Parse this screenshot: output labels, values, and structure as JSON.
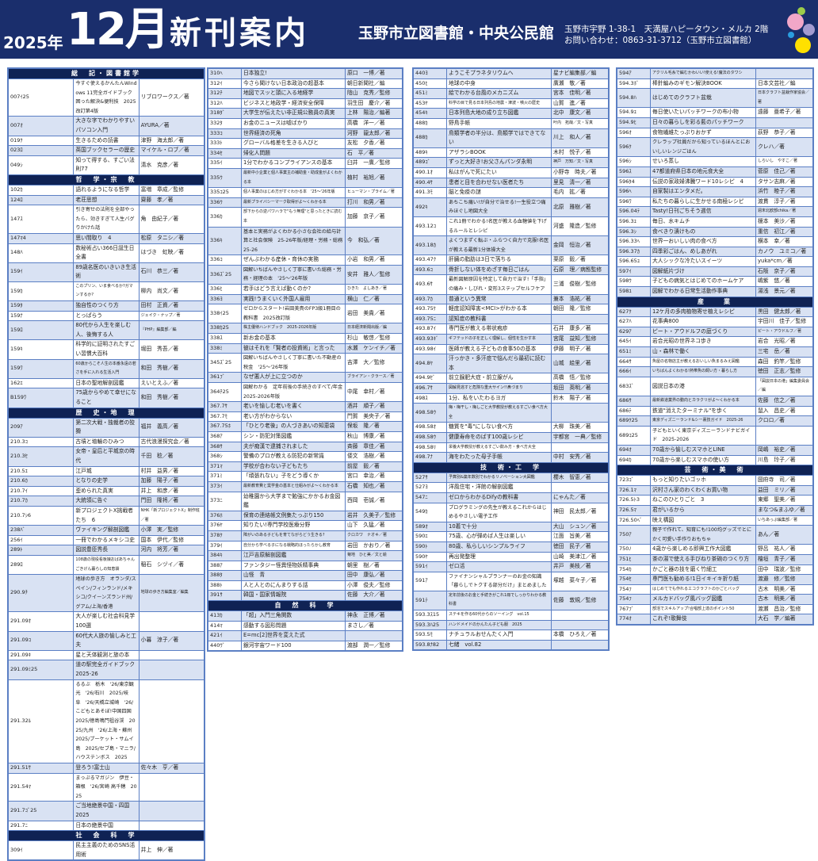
{
  "header": {
    "year": "2025年",
    "month": "12月",
    "title": "新刊案内",
    "library": "玉野市立図書館・中央公民館",
    "address": "玉野市宇野 1-38-1　天満屋ハピータウン・メルカ 2階",
    "contact": "お問い合わせ：0863-31-3712（玉野市立図書館）"
  },
  "colors": {
    "header_bg": "#1a2e6c",
    "section_bg": "#0f2254",
    "row_alt": "#d9e2f3",
    "border": "#5b7fc4",
    "dots": [
      "#9ccc4a",
      "#f2a7c8",
      "#a29bd0",
      "#2a9de0",
      "#ffe000"
    ]
  },
  "columns": [
    [
      {
        "section": "総　記・図書館学"
      },
      [
        "007ｲ25",
        "今すぐ使えるかんたんWindows 11完全ガイドブック 困った解決&便利技　2025改訂第4版",
        "リブロワークス／著"
      ],
      [
        "007ｵ",
        "大きな字でわかりやすいパソコン入門",
        "AYURA／著"
      ],
      [
        "019ｸ",
        "生きるための読書",
        "津野　海太郎／著"
      ],
      [
        "023ﾛ",
        "英国ブックセラーの歴史",
        "マイケル・ロブ／著"
      ],
      [
        "049ｼ",
        "知って得する、すごい法則77",
        "清水　克彦／著"
      ],
      {
        "section": "哲　学・宗　教"
      },
      [
        "102ｶ",
        "語れるようになる哲学",
        "富増　章成／監修"
      ],
      [
        "124ﾛ",
        "老荘思想",
        "齋藤　孝／著"
      ],
      [
        "147ｽ",
        "引き寄せの法則を全部やったら、効きすぎて人生バグりかけた話",
        "角　由紀子／著"
      ],
      [
        "147ﾏ4",
        "思い間取り　4",
        "松原　タニシ／著"
      ],
      [
        "148ﾊ",
        "数秘術占い366日誕生日全書",
        "はづき　虹映／著"
      ],
      [
        "159ｲ",
        "89歳名医のいきいき生活術",
        "石川　恭三／著"
      ],
      [
        "159ｶ",
        "このプリン、いま食べるか?ガマンするか?",
        "柳内　尚文／著"
      ],
      [
        "159ﾀ",
        "独自性のつくり方",
        "田村　正資／著"
      ],
      [
        "159ﾅ",
        "とっぱらう",
        "ジェイク・ナップ／著"
      ],
      [
        "159ﾛ",
        "80代から人生を楽しむ人、後悔する人",
        "『PHP』編集部／編"
      ],
      [
        "159ｷ",
        "科学的に証明されたすごい習慣大百科",
        "堀田　秀吾／著"
      ],
      [
        "159ﾜ",
        "60歳からこそ人生の本番永遠の若さを手に入れる生活入門",
        "和田　秀樹／著"
      ],
      [
        "162ｴ",
        "日本の聖地解剖図鑑",
        "えいとえふ／著"
      ],
      [
        "B159ﾜ",
        "75歳からやめて幸せになること",
        "和田　秀樹／著"
      ],
      {
        "section": "歴　史・地　理"
      },
      [
        "209ｱ",
        "第二次大戦・独裁者の狡猾",
        "福井　義高／著"
      ],
      [
        "210.3ｺ",
        "古墳と埴輪のひみつ",
        "古代浪漫探究会／著"
      ],
      [
        "210.3ｾ",
        "女帝・皇后と平城京の時代",
        "千田　稔／著"
      ],
      [
        "210.5ｴ",
        "江戸城",
        "村井　益男／著"
      ],
      [
        "210.6ｶ",
        "となりの史学",
        "加藤　陽子／著"
      ],
      [
        "210.7ｲ",
        "歪められた真実",
        "井上　和彦／著"
      ],
      [
        "210.7ｶ",
        "大統領に告ぐ",
        "門田　隆将／著"
      ],
      [
        "210.7ｼ6",
        "新プロジェクトX挑戦者たち　6",
        "NHK「新プロジェクトX」制作班／著"
      ],
      [
        "238ﾊﾞ",
        "ヴァイキング解剖図鑑",
        "小澤　実／監修"
      ],
      [
        "256ｲ",
        "一冊でわかるメキシコ史",
        "国本　伊代／監修"
      ],
      [
        "289ﾄ",
        "図説豊臣秀長",
        "河内　将芳／著"
      ],
      [
        "289ﾛ",
        "108歳の現役看板娘おばあちゃんごきげん暮らしの知恵袋",
        "稲石　シヅイ／著"
      ],
      [
        "290.9ﾁ",
        "地球の歩き方　オランダ/スペイン/フィンランド/メキシコ/クイーンズランド州/グアム/上海/香港",
        "地球の歩き方編集室／編集"
      ],
      [
        "291.09ｵ",
        "大人が楽しむ社会科見学100選",
        ""
      ],
      [
        "291.09ｺ",
        "60代大人旅の愉しみと工夫",
        "小暮　涼子／著"
      ],
      [
        "291.09ｷ",
        "星と天体観測と旅の本",
        ""
      ],
      [
        "291.09ﾐ25",
        "道の駅完全ガイドブック　2025-26",
        ""
      ],
      [
        "291.32ﾙ",
        "るるぶ　栃木　'26/東京観光　'26/石川　2025/岐阜　'26/天橋立城崎　'26/こどもとあそぼ!中国四国　2025/徳島鳴門祖谷渓　2025/九州　'26/上海・蘇州　2025/プーケット・サムイ島　2025/セブ島・マニラ/ハウステンボス　2025",
        ""
      ],
      [
        "291.51ｻ",
        "登ろう!富士山",
        "佐々木　亨／著"
      ],
      [
        "291.54ﾏ",
        "まっぷるマガジン　伊豆・箱根　'26/宮崎 高千穂　2025",
        ""
      ],
      [
        "291.7ｺﾞ25",
        "ご当地絶景中国・四国　2025",
        ""
      ],
      [
        "291.7ﾆ",
        "日本の絶景中国",
        ""
      ],
      {
        "section": "社　会　科　学"
      },
      [
        "309ｲ",
        "民主主義のためのSNS活用術",
        "井上　伸／著"
      ]
    ],
    [
      [
        "310ﾍ",
        "日本独立!",
        "原口　一博／著"
      ],
      [
        "312ｲ",
        "今さら聞けない日本政治の超基本",
        "朝日新聞社／編"
      ],
      [
        "312ﾁ",
        "地図でスッと頭に入る地経学",
        "陰山　克秀／監修"
      ],
      [
        "312ﾊ",
        "ビジネスと地政学・経済安全保障",
        "羽生田　慶介／著"
      ],
      [
        "318ﾀﾞ",
        "大学生が伝えたい非正規公務員の真実",
        "上林　陽治／編著"
      ],
      [
        "332ﾀ",
        "お金のニュースは嘘ばかり",
        "高橋　洋一／著"
      ],
      [
        "333ｺ",
        "世界経済の死角",
        "河野　龍太郎／著"
      ],
      [
        "333ﾄ",
        "グローバル格差を生きる人びと",
        "友松　夕香／著"
      ],
      [
        "334ｾ",
        "帰化人問題",
        "石　平／著"
      ],
      [
        "335ｲ",
        "1分でわかるコンプライアンスの基本",
        "臼井　一廣／監修"
      ],
      [
        "335ｳ",
        "最新中小企業と個人事業主の補助金・助成金がよくわかる本",
        "植村　裕旭／著"
      ],
      [
        "335ｺ25",
        "個人事業のはじめ方がすぐわかる本　'25～'26年版",
        "ヒューマン・プライム／著"
      ],
      [
        "336ｳ",
        "最新プライバシーマーク取得がよ～くわかる本",
        "打川　和男／著"
      ],
      [
        "336ｶ",
        "部下からの逆パワハラで\"もう無理\"と思ったときに読む本",
        "加藤　京子／著"
      ],
      [
        "336ｷ",
        "基本と実務がよくわかる小さな会社の給与計算と社会保険　25-26年版/経理・労務・総務　25-26",
        "今　和弘／著"
      ],
      [
        "336ｺ",
        "ぜんぶわかる産休・育休の実務",
        "小岩　和男／著"
      ],
      [
        "336ｽﾞ25",
        "図解いちばんやさしく丁寧に書いた総務・労務・経理の本　'25～'26年版",
        "安井　雅人／監修"
      ],
      [
        "336ﾋ",
        "若手はどう言えば動くのか?",
        "ひきた　よしあき／著"
      ],
      [
        "336ﾖ",
        "実践!うまくいく外国人雇用",
        "横山　仁／著"
      ],
      [
        "338ｲ25",
        "ゼロからスタート!岩田美貴のFP3級1冊目の教科書　2025改訂版",
        "岩田　美貴／著"
      ],
      [
        "338ｶ25",
        "株主優待ハンドブック　2025-2026年版",
        "日本経済新聞出版／編"
      ],
      [
        "338ｽ",
        "新お金の基本",
        "杉山　敏啓／監修"
      ],
      [
        "338ﾐ",
        "彼はそれを「賢者の投資術」と言った",
        "水瀬　ケンイチ／著"
      ],
      [
        "345ｽﾞ25",
        "図解いちばんやさしく丁寧に書いた不動産の税金　'25～'26年版",
        "吉澤　大／監修"
      ],
      [
        "361ﾌﾞ",
        "なぜ悪人が上に立つのか",
        "ブライアン・クラース／著"
      ],
      [
        "364ﾁ25",
        "図解わかる　定年前後の手続きのすべて/年金　2025-2026年版",
        "中尾　幸村／著"
      ],
      [
        "367.7ｻ",
        "老いを愉しむ老いを書く",
        "酒井　順子／著"
      ],
      [
        "367.7ﾓ",
        "老い方がわからない",
        "門賀　美央子／著"
      ],
      [
        "367.75ﾎ",
        "「ひとり老後」の人づきあいの知恵袋",
        "保坂　隆／著"
      ],
      [
        "368ｱ",
        "シン・防犯対策図鑑",
        "秋山　博康／著"
      ],
      [
        "368ｻ",
        "夫が痴漢で逮捕されました",
        "斉藤　章佳／著"
      ],
      [
        "368ｼ",
        "警備のプロが教える防犯の新常識",
        "倭文　浩樹／著"
      ],
      [
        "371ﾏ",
        "学校が合わない子どもたち",
        "前屋　毅／著"
      ],
      [
        "371ﾐ",
        "「頑張れない」子をどう導くか",
        "宮口　幸治／著"
      ],
      [
        "373ｲ",
        "最新教育費と奨学金の基本と仕組みがよ～くわかる本",
        "石橋　知也／著"
      ],
      [
        "373ﾆ",
        "幼稚園から大学まで勉強にかかるお金図鑑",
        "西岡　壱誠／著"
      ],
      [
        "376ﾎ",
        "保育の連絡帳文例集たっぷり150",
        "岩井　久美子／監修"
      ],
      [
        "376ﾔ",
        "知りたい!専門学校医療分野",
        "山下　久猛／著"
      ],
      [
        "378ｸ",
        "障がいのある子どもを育てながらどう生きる?",
        "クロカワ　ナオキ／著"
      ],
      [
        "379ｲ",
        "自分から学べる子になる戦略的ほったらかし教育",
        "岩田　かおり／著"
      ],
      [
        "384ｷ",
        "江戸吉原解剖図鑑",
        "菊地　ひと美／文と絵"
      ],
      [
        "388ｱ",
        "ファンタジー怪異怪物妖精事典",
        "朝里　樹／著"
      ],
      [
        "388ﾀ",
        "山怪　青",
        "田中　康弘／著"
      ],
      [
        "388ﾄ",
        "人と人とのにんまりする話",
        "小澤　俊夫／監修"
      ],
      [
        "391ｻ",
        "韓国・国家情報院",
        "佐藤　大介／著"
      ],
      {
        "section": "自　然　科　学"
      },
      [
        "413ｶ",
        "「超」入門三角関数",
        "神永　正博／著"
      ],
      [
        "414ﾏ",
        "感動する図形問題",
        "まさし／著"
      ],
      [
        "421ｲ",
        "E=mc[2]世界を変えた式",
        ""
      ],
      [
        "440ｳﾞ",
        "銀河宇宙ワード100",
        "渡部　潤一／監修"
      ]
    ],
    [
      [
        "440ﾖ",
        "ようこそプラネタリウムへ",
        "星ナビ編集部／編"
      ],
      [
        "450ﾋ",
        "地球の中身",
        "廣瀬　敬／著"
      ],
      [
        "451ﾐ",
        "絵でわかる台風のメカニズム",
        "宮本　佳明／著"
      ],
      [
        "453ﾔ",
        "科学の目で見る日本列島の地震・津波・噴火の歴史",
        "山賀　進／著"
      ],
      [
        "454ｷ",
        "日本列島大地の成り立ち図鑑",
        "北中　康文／著"
      ],
      [
        "488ｶ",
        "野鳥手帳",
        "叶内　拓哉／文・写真"
      ],
      [
        "488ｶ",
        "鳥類学者の半分は、鳥類学ではできてない",
        "川上　和人／著"
      ],
      [
        "489ｷ",
        "アザラシBOOK",
        "木村　悦子／著"
      ],
      [
        "489ｺﾞ",
        "ずっと大好き!お父さんパンダ永明",
        "神戸　万知／文・写真"
      ],
      [
        "490.1ｵ",
        "私はがんで死にたい",
        "小野寺　時夫／著"
      ],
      [
        "490.4ｻ",
        "患者と目を合わせない医者たち",
        "里見　清一／著"
      ],
      [
        "491.3ﾓ",
        "脳と免疫の謎",
        "毛内　拡／著"
      ],
      [
        "492ｷ",
        "あちこち痛い!が自分で治せる!一生役立つ痛みほぐし地図大全",
        "北原　雅樹／著"
      ],
      [
        "493.12ｺ",
        "これ1冊でわかる!名医が教える血糖値を下げるルールとレシピ",
        "河盛　隆造／監修"
      ],
      [
        "493.18ｶ",
        "よくつまずく転ぶ・ふらつく自力で克服!名医が教える最新1分体操大全",
        "金岡　恒治／著"
      ],
      [
        "493.47ｸ",
        "肝臓の脂肪は3日で落ちる",
        "栗原　毅／著"
      ],
      [
        "493.6ｺ",
        "骨折しない体をめざす毎日ごはん",
        "石原　理／病態監修"
      ],
      [
        "493.6ｻ",
        "最新図解原因を特定して自力で治す!「手指」の痛み・しびれ・変形3ステップセルフケア",
        "三浦　俊樹／監修"
      ],
      [
        "493.7ｶ",
        "普通という異常",
        "兼本　浩祐／著"
      ],
      [
        "493.75ｹ",
        "軽度認知障害<MCI>がわかる本",
        "朝田　隆／監修"
      ],
      [
        "493.75ﾆ",
        "認知症の教科書",
        ""
      ],
      [
        "493.87ｲ",
        "専門医が教える帯状疱疹",
        "石井　康多／著"
      ],
      [
        "493.93ｷﾞ",
        "ギフテッドの子を正しく理解し、個性を生かす本",
        "宮尾　益知／監修"
      ],
      [
        "493.98ｲ",
        "医師が教える子どもの食事50の基本",
        "伊藤　明子／著"
      ],
      [
        "494.8ﾔ",
        "汗っかき・多汗症で悩んだら最初に読む本",
        "山城　絵里／著"
      ],
      [
        "494.9ｾﾞ",
        "前立腺肥大症・前立腺がん",
        "高橋　悟／監修"
      ],
      [
        "496.7ｻ",
        "図解見逃すと危険な重大サイン!!鼻づまり",
        "坂田　英明／著"
      ],
      [
        "498ｽ",
        "1分、私をいたわるヨガ",
        "鈴木　陽子／著"
      ],
      [
        "498.58ｳ",
        "梅・梅干し・梅しごと大学教授が教えるすごい食べ方大全",
        ""
      ],
      [
        "498.58ｵ",
        "糖質を\"毒\"にしない食べ方",
        "大柳　珠美／著"
      ],
      [
        "498.58ｳ",
        "健康寿命をのばす100歳レシピ",
        "宇都宮　一典／監修"
      ],
      [
        "498.58ﾘ",
        "栄養大学教授が教えるすごい飲み方・食べ方大全",
        ""
      ],
      [
        "498.7ﾅ",
        "海をわたった母子手帳",
        "中村　安秀／著"
      ],
      {
        "section": "技　術・工　学"
      },
      [
        "527ｻ",
        "予算別&築年数別でわかるリノベーション大図鑑",
        "櫻木　智恵／著"
      ],
      [
        "527ﾖ",
        "洋風住宅・洋館の解剖図鑑",
        ""
      ],
      [
        "547ﾆ",
        "ゼロからわかるDifyの教科書",
        "にゃんた／著"
      ],
      [
        "549ｶ",
        "プログラミングの先生が教えるこれからはじめるやさしい電子工作",
        "神田　民太郎／著"
      ],
      [
        "589ｵ",
        "10着で十分",
        "大山　シュン／著"
      ],
      [
        "590ｴ",
        "75歳、心が弾めば人生は楽しい",
        "江面　旨美／著"
      ],
      [
        "590ﾄ",
        "80歳、私らしいシンプルライフ",
        "徳田　民子／著"
      ],
      [
        "590ﾔ",
        "再出発整理",
        "山崎　美津江／著"
      ],
      [
        "591ｲ",
        "ゼロ活",
        "井戸　美枝／著"
      ],
      [
        "591ｱ",
        "ファイナンシャルプランナーのお金の知識「暮らしでトクする部分だけ」まとめました",
        "塚越　菜々子／著"
      ],
      [
        "591ﾃ",
        "定年前後のお金と手続きがこれ1冊でしっかりわかる教科書",
        "佐藤　敦規／監修"
      ],
      [
        "593.3ｽ15",
        "ステキを作る60代からのソーイング　vol.15",
        ""
      ],
      [
        "593.3ﾊ25",
        "ハンドメイドのかんたん子ども服　2025",
        ""
      ],
      [
        "593.5ﾓ",
        "ナチュラルおせんたく入門",
        "本橋　ひろえ／著"
      ],
      [
        "593.8ﾅ82",
        "七緒　vol.82",
        ""
      ]
    ],
    [
      [
        "594ｱ",
        "アクリル毛糸で編むかわいい!使える!魔法のタワシ",
        ""
      ],
      [
        "594.3ﾎﾞ",
        "棒針編みのギモン解決BOOK",
        "日本文芸社／編"
      ],
      [
        "594.8ﾊ",
        "はじめてのクラフト盆栽",
        "日本クラフト盆栽作家協会／著"
      ],
      [
        "594.9ﾕ",
        "毎日使いたいパッチワークの布小物",
        "遠藤　亜希子／著"
      ],
      [
        "594.9ﾋ",
        "日々の暮らしを彩る藍のパッチワーク",
        ""
      ],
      [
        "596ｵ",
        "食物繊維たっぷりおかず",
        "荻野　恭子／著"
      ],
      [
        "596ｸ",
        "クレラップ社員だから知っているほんとにおいしいレンジごはん",
        "クレハ／著"
      ],
      [
        "596ｼ",
        "せいろ蒸し",
        "しらいし　やすこ／著"
      ],
      [
        "596ｽ",
        "47都道府県日本の地元食大全",
        "菅原　佳己／著"
      ],
      [
        "596ﾀ4",
        "伝説の家政婦沸騰ワード10レシピ　4",
        "タサン志麻／著"
      ],
      [
        "596ﾍ",
        "自家製はエンタメだ。",
        "浜竹　睦子／著"
      ],
      [
        "596ﾜ",
        "私たちの暮らしに生かせる南極レシピ",
        "渡貫　淳子／著"
      ],
      [
        "596.04ﾃ",
        "Tasty!日刊ごちそう週信",
        "週末北欧部chika／著"
      ],
      [
        "596.3ﾕ",
        "毎日、水キムチ",
        "榎本　美沙／著"
      ],
      [
        "596.3ｼ",
        "食べきり漬けもの",
        "重信　初江／著"
      ],
      [
        "596.33ﾍ",
        "世界一おいしい肉の食べ方",
        "横本　幸／著"
      ],
      [
        "596.37ｶ",
        "四季彩ごはん、めしあがれ",
        "カノウ　ユミコ／著"
      ],
      [
        "596.65ﾕ",
        "大人シックな冷たいスイーツ",
        "yuka*cm／著"
      ],
      [
        "597ｲ",
        "図解紙片づけ",
        "石阪　京子／著"
      ],
      [
        "598ｳ",
        "子どもの病気とはじめてのホームケア",
        "嶋紫　悠／著"
      ],
      [
        "598ﾕ",
        "図解でわかる日常生活動作事典",
        "湯浅　景元／著"
      ],
      {
        "section": "産　　業"
      },
      [
        "627ｸ",
        "12ケ月の多肉植物寄せ植えレシピ",
        "黒田　健太郎／著"
      ],
      [
        "627ﾊ",
        "花事典800",
        "宇田川　佳子／監修"
      ],
      [
        "629ｱ",
        "ピート・アウドルフの庭づくり",
        "ピート・アウドルフ／著"
      ],
      [
        "645ｲ",
        "岩合光昭の世界ネコ歩き",
        "岩合　光昭／著"
      ],
      [
        "651ﾐ",
        "山・森林で働く",
        "三宅　岳／著"
      ],
      [
        "664ｻ",
        "魚屋の名物店主が教えるおいしい魚まるみえ図鑑",
        "森田　釣竿／監修"
      ],
      [
        "666ｲ",
        "いちばんよくわかる!熱帯魚の飼い方・暮らし方",
        "徳田　正志／監修"
      ],
      [
        "683ｽﾞ",
        "図説日本の港",
        "「図説日本の港」編集委員会／編"
      ],
      [
        "686ｻ",
        "最新鉄道業界の動向とカラクリがよ～くわかる本",
        "佐藤　信之／著"
      ],
      [
        "686ﾃ",
        "鉄道\"消えたターミナル\"を歩く",
        "鼠入　昌史／著"
      ],
      [
        "689ｸ25",
        "東京ディズニーランド&シー裏技ガイド　2025-26",
        "クロロ／著"
      ],
      [
        "689ｺ25",
        "子どもといく東京ディズニーランドナビガイド　2025-2026",
        ""
      ],
      [
        "694ｵ",
        "70歳から愉しむスマホとLINE",
        "岡嶋　裕史／著"
      ],
      [
        "694ｶ",
        "70歳から楽しむスマホの使い方",
        "川島　玲子／著"
      ],
      {
        "section": "芸　術・美　術"
      },
      [
        "723ｺﾞ",
        "もっと知りたいゴッホ",
        "圀府寺　司／著"
      ],
      [
        "726.1ﾏ",
        "沢村さん家のわくわくお買い物",
        "益田　ミリ／著"
      ],
      [
        "726.5ﾄ3",
        "ねこのひとりごと　3",
        "東郷　聖美／著"
      ],
      [
        "726.5ﾏ",
        "君がいるから",
        "まなつ&まふゆ／著"
      ],
      [
        "726.50ﾍﾞ",
        "映え構図",
        "いちあっぷ編集部／著"
      ],
      [
        "750ｱ",
        "親子で作れて、知育にも!100均グッズでとにかく可愛い手作りおもちゃ",
        "あん／著"
      ],
      [
        "750ﾉ",
        "4歳から楽しめる即興工作大図鑑",
        "野呂　祐人／著"
      ],
      [
        "751ﾋ",
        "茶の湯で使える手びねり茶碗のつくり方",
        "檜垣　青子／著"
      ],
      [
        "754ｶ",
        "かごと器の技を磨く竹細工",
        "田中　瑞波／監修"
      ],
      [
        "754ｾ",
        "専門医も勧める!1日イキイキ折り紙",
        "渡邉　修／監修"
      ],
      [
        "754ﾌ",
        "はじめてでも作れるエコクラフトのかごとバッグ",
        "古木　明美／著"
      ],
      [
        "754ﾌ",
        "メルカドバッグ風バッグ図鑑",
        "古木　明美／著"
      ],
      [
        "767ﾌﾞ",
        "部活でスキルアップ!合唱部上達のポイント50",
        "渡瀬　昌治／監修"
      ],
      [
        "774ｵ",
        "これぞ!歌舞伎",
        "大石　学／編著"
      ]
    ]
  ]
}
